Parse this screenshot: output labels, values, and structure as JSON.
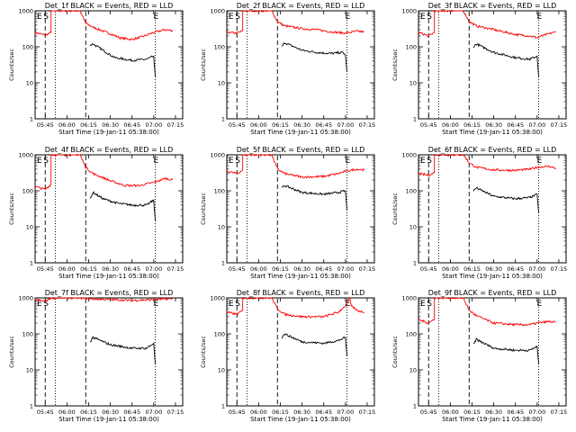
{
  "chart_data": [
    {
      "type": "line",
      "title": "Det_1f BLACK = Events, RED = LLD",
      "xlabel": "Start Time (19-Jan-11 05:38:00)",
      "ylabel": "Counts/sec",
      "yscale": "log",
      "ylim": [
        1,
        1000
      ],
      "xticklabels": [
        "05:45",
        "06:00",
        "06:15",
        "06:30",
        "06:45",
        "07:00",
        "07:15"
      ],
      "yticklabels": [
        "1",
        "10",
        "100",
        "1000"
      ],
      "marker_labels": [
        "E",
        "S",
        "E"
      ],
      "series": [
        {
          "color": "#ff0000",
          "x": [
            "05:38",
            "05:45",
            "05:49",
            "05:49",
            "06:09",
            "06:13",
            "06:18",
            "06:30",
            "06:37",
            "06:45",
            "06:52",
            "07:00",
            "07:08",
            "07:13"
          ],
          "y": [
            250,
            210,
            250,
            1000,
            1000,
            450,
            350,
            230,
            175,
            160,
            190,
            250,
            300,
            280
          ]
        },
        {
          "color": "#000000",
          "x": [
            "06:16",
            "06:18",
            "06:25",
            "06:33",
            "06:45",
            "06:55",
            "07:00",
            "07:01"
          ],
          "y": [
            110,
            120,
            80,
            50,
            42,
            45,
            55,
            15
          ]
        }
      ]
    },
    {
      "type": "line",
      "title": "Det_2f BLACK = Events, RED = LLD",
      "xlabel": "Start Time (19-Jan-11 05:38:00)",
      "ylabel": "Counts/sec",
      "yscale": "log",
      "ylim": [
        1,
        1000
      ],
      "xticklabels": [
        "05:45",
        "06:00",
        "06:15",
        "06:30",
        "06:45",
        "07:00",
        "07:15"
      ],
      "yticklabels": [
        "1",
        "10",
        "100",
        "1000"
      ],
      "marker_labels": [
        "E",
        "S",
        "E"
      ],
      "series": [
        {
          "color": "#ff0000",
          "x": [
            "05:38",
            "05:45",
            "05:49",
            "05:49",
            "06:09",
            "06:13",
            "06:18",
            "06:30",
            "06:40",
            "06:50",
            "07:00",
            "07:08",
            "07:13"
          ],
          "y": [
            250,
            240,
            280,
            1000,
            1000,
            500,
            380,
            320,
            300,
            260,
            240,
            270,
            260
          ]
        },
        {
          "color": "#000000",
          "x": [
            "06:16",
            "06:18",
            "06:30",
            "06:40",
            "06:50",
            "06:58",
            "07:00",
            "07:01"
          ],
          "y": [
            100,
            130,
            80,
            70,
            65,
            70,
            60,
            20
          ]
        }
      ]
    },
    {
      "type": "line",
      "title": "Det_3f BLACK = Events, RED = LLD",
      "xlabel": "Start Time (19-Jan-11 05:38:00)",
      "ylabel": "Counts/sec",
      "yscale": "log",
      "ylim": [
        1,
        1000
      ],
      "xticklabels": [
        "05:45",
        "06:00",
        "06:15",
        "06:30",
        "06:45",
        "07:00",
        "07:15"
      ],
      "yticklabels": [
        "1",
        "10",
        "100",
        "1000"
      ],
      "marker_labels": [
        "E",
        "S",
        "E"
      ],
      "series": [
        {
          "color": "#ff0000",
          "x": [
            "05:38",
            "05:45",
            "05:49",
            "05:49",
            "06:09",
            "06:13",
            "06:18",
            "06:30",
            "06:45",
            "06:55",
            "07:00",
            "07:08",
            "07:13"
          ],
          "y": [
            250,
            200,
            250,
            1000,
            1000,
            500,
            380,
            300,
            220,
            200,
            180,
            230,
            260
          ]
        },
        {
          "color": "#000000",
          "x": [
            "06:16",
            "06:18",
            "06:30",
            "06:45",
            "06:55",
            "07:00",
            "07:01"
          ],
          "y": [
            100,
            120,
            70,
            50,
            45,
            55,
            15
          ]
        }
      ]
    },
    {
      "type": "line",
      "title": "Det_4f BLACK = Events, RED = LLD",
      "xlabel": "Start Time (19-Jan-11 05:38:00)",
      "ylabel": "Counts/sec",
      "yscale": "log",
      "ylim": [
        1,
        1000
      ],
      "xticklabels": [
        "05:45",
        "06:00",
        "06:15",
        "06:30",
        "06:45",
        "07:00",
        "07:15"
      ],
      "yticklabels": [
        "1",
        "10",
        "100",
        "1000"
      ],
      "marker_labels": [
        "E",
        "S",
        "E"
      ],
      "series": [
        {
          "color": "#ff0000",
          "x": [
            "05:38",
            "05:45",
            "05:49",
            "05:49",
            "06:09",
            "06:13",
            "06:18",
            "06:30",
            "06:40",
            "06:50",
            "07:00",
            "07:08",
            "07:13"
          ],
          "y": [
            130,
            110,
            150,
            1000,
            1000,
            450,
            300,
            190,
            140,
            140,
            170,
            220,
            200
          ]
        },
        {
          "color": "#000000",
          "x": [
            "06:16",
            "06:18",
            "06:25",
            "06:35",
            "06:45",
            "06:55",
            "07:00",
            "07:01"
          ],
          "y": [
            60,
            90,
            60,
            45,
            40,
            40,
            55,
            15
          ]
        }
      ]
    },
    {
      "type": "line",
      "title": "Det_5f BLACK = Events, RED = LLD",
      "xlabel": "Start Time (19-Jan-11 05:38:00)",
      "ylabel": "Counts/sec",
      "yscale": "log",
      "ylim": [
        1,
        1000
      ],
      "xticklabels": [
        "05:45",
        "06:00",
        "06:15",
        "06:30",
        "06:45",
        "07:00",
        "07:15"
      ],
      "yticklabels": [
        "1",
        "10",
        "100",
        "1000"
      ],
      "marker_labels": [
        "E",
        "S",
        "E"
      ],
      "series": [
        {
          "color": "#ff0000",
          "x": [
            "05:38",
            "05:45",
            "05:49",
            "05:49",
            "06:09",
            "06:13",
            "06:18",
            "06:30",
            "06:45",
            "06:55",
            "07:00",
            "07:08",
            "07:13"
          ],
          "y": [
            350,
            300,
            380,
            1000,
            1000,
            400,
            300,
            240,
            250,
            300,
            350,
            400,
            380
          ]
        },
        {
          "color": "#000000",
          "x": [
            "06:16",
            "06:18",
            "06:30",
            "06:45",
            "06:55",
            "07:00",
            "07:01"
          ],
          "y": [
            120,
            140,
            90,
            80,
            90,
            100,
            30
          ]
        }
      ]
    },
    {
      "type": "line",
      "title": "Det_6f BLACK = Events, RED = LLD",
      "xlabel": "Start Time (19-Jan-11 05:38:00)",
      "ylabel": "Counts/sec",
      "yscale": "log",
      "ylim": [
        1,
        1000
      ],
      "xticklabels": [
        "05:45",
        "06:00",
        "06:15",
        "06:30",
        "06:45",
        "07:00",
        "07:15"
      ],
      "yticklabels": [
        "1",
        "10",
        "100",
        "1000"
      ],
      "marker_labels": [
        "E",
        "S",
        "E"
      ],
      "series": [
        {
          "color": "#ff0000",
          "x": [
            "05:38",
            "05:45",
            "05:49",
            "05:49",
            "06:09",
            "06:13",
            "06:18",
            "06:30",
            "06:45",
            "06:55",
            "07:00",
            "07:08",
            "07:13"
          ],
          "y": [
            300,
            270,
            320,
            1000,
            1000,
            600,
            450,
            380,
            370,
            400,
            450,
            480,
            420
          ]
        },
        {
          "color": "#000000",
          "x": [
            "06:16",
            "06:18",
            "06:30",
            "06:45",
            "06:55",
            "07:00",
            "07:01"
          ],
          "y": [
            100,
            120,
            70,
            60,
            65,
            80,
            25
          ]
        }
      ]
    },
    {
      "type": "line",
      "title": "Det_7f BLACK = Events, RED = LLD",
      "xlabel": "Start Time (19-Jan-11 05:38:00)",
      "ylabel": "Counts/sec",
      "yscale": "log",
      "ylim": [
        1,
        1000
      ],
      "xticklabels": [
        "05:45",
        "06:00",
        "06:15",
        "06:30",
        "06:45",
        "07:00",
        "07:15"
      ],
      "yticklabels": [
        "1",
        "10",
        "100",
        "1000"
      ],
      "marker_labels": [
        "E",
        "S",
        "E"
      ],
      "series": [
        {
          "color": "#ff0000",
          "x": [
            "05:38",
            "05:45",
            "05:49",
            "06:09",
            "06:13",
            "06:30",
            "06:45",
            "07:00",
            "07:13"
          ],
          "y": [
            900,
            800,
            1000,
            1000,
            950,
            900,
            850,
            900,
            950
          ]
        },
        {
          "color": "#000000",
          "x": [
            "06:16",
            "06:18",
            "06:30",
            "06:45",
            "06:55",
            "07:00",
            "07:01"
          ],
          "y": [
            60,
            80,
            50,
            40,
            40,
            55,
            15
          ]
        }
      ]
    },
    {
      "type": "line",
      "title": "Det_8f BLACK = Events, RED = LLD",
      "xlabel": "Start Time (19-Jan-11 05:38:00)",
      "ylabel": "Counts/sec",
      "yscale": "log",
      "ylim": [
        1,
        1000
      ],
      "xticklabels": [
        "05:45",
        "06:00",
        "06:15",
        "06:30",
        "06:45",
        "07:00",
        "07:15"
      ],
      "yticklabels": [
        "1",
        "10",
        "100",
        "1000"
      ],
      "marker_labels": [
        "E",
        "S",
        "E"
      ],
      "series": [
        {
          "color": "#ff0000",
          "x": [
            "05:38",
            "05:45",
            "05:49",
            "05:49",
            "06:09",
            "06:13",
            "06:18",
            "06:30",
            "06:45",
            "06:55",
            "07:00",
            "07:03",
            "07:04",
            "07:08",
            "07:13"
          ],
          "y": [
            400,
            350,
            450,
            1000,
            1000,
            500,
            350,
            300,
            300,
            400,
            600,
            1000,
            600,
            450,
            400
          ]
        },
        {
          "color": "#000000",
          "x": [
            "06:16",
            "06:18",
            "06:30",
            "06:45",
            "06:55",
            "07:00",
            "07:01"
          ],
          "y": [
            80,
            100,
            60,
            55,
            65,
            80,
            25
          ]
        }
      ]
    },
    {
      "type": "line",
      "title": "Det_9f BLACK = Events, RED = LLD",
      "xlabel": "Start Time (19-Jan-11 05:38:00)",
      "ylabel": "Counts/sec",
      "yscale": "log",
      "ylim": [
        1,
        1000
      ],
      "xticklabels": [
        "05:45",
        "06:00",
        "06:15",
        "06:30",
        "06:45",
        "07:00",
        "07:15"
      ],
      "yticklabels": [
        "1",
        "10",
        "100",
        "1000"
      ],
      "marker_labels": [
        "E",
        "S",
        "E"
      ],
      "series": [
        {
          "color": "#ff0000",
          "x": [
            "05:38",
            "05:45",
            "05:49",
            "05:49",
            "06:09",
            "06:13",
            "06:18",
            "06:30",
            "06:45",
            "06:55",
            "07:00",
            "07:08",
            "07:13"
          ],
          "y": [
            250,
            200,
            260,
            1000,
            1000,
            450,
            320,
            200,
            180,
            180,
            200,
            220,
            210
          ]
        },
        {
          "color": "#000000",
          "x": [
            "06:16",
            "06:18",
            "06:30",
            "06:45",
            "06:55",
            "07:00",
            "07:01"
          ],
          "y": [
            50,
            70,
            40,
            35,
            35,
            45,
            15
          ]
        }
      ]
    }
  ]
}
